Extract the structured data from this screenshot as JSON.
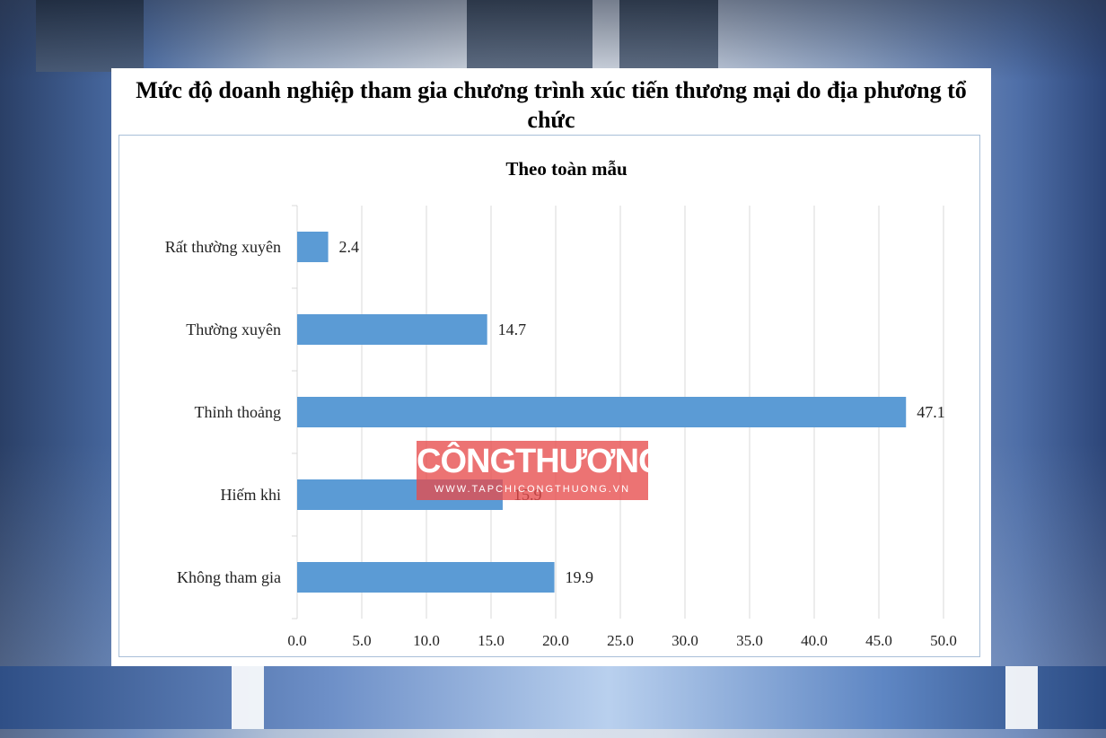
{
  "page": {
    "title": "Mức độ doanh nghiệp tham gia chương trình xúc tiến thương mại do địa phương tổ chức"
  },
  "watermark": {
    "title": "CÔNGTHƯƠNG",
    "subtitle": "WWW.TAPCHICONGTHUONG.VN"
  },
  "colors": {
    "bar": "#5b9bd5",
    "grid": "#d9d9d9",
    "watermark": "#e74c4c"
  },
  "chart_data": {
    "type": "bar",
    "orientation": "horizontal",
    "title": "Theo toàn mẫu",
    "categories": [
      "Rất thường xuyên",
      "Thường xuyên",
      "Thỉnh thoảng",
      "Hiếm khi",
      "Không tham gia"
    ],
    "values": [
      2.4,
      14.7,
      47.1,
      15.9,
      19.9
    ],
    "value_labels": [
      "2.4",
      "14.7",
      "47.1",
      "15.9",
      "19.9"
    ],
    "xlim": [
      0,
      50
    ],
    "ticks": [
      "0.0",
      "5.0",
      "10.0",
      "15.0",
      "20.0",
      "25.0",
      "30.0",
      "35.0",
      "40.0",
      "45.0",
      "50.0"
    ],
    "grid": "vertical",
    "legend": "none"
  }
}
